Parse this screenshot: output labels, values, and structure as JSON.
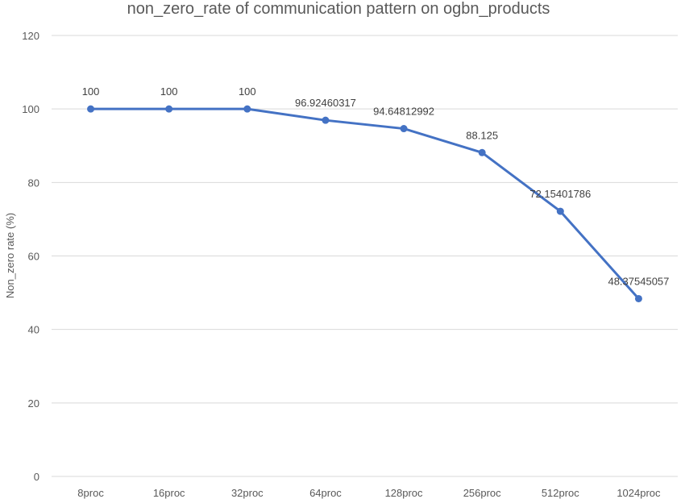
{
  "chart_data": {
    "type": "line",
    "title": "non_zero_rate of communication pattern on ogbn_products",
    "xlabel": "",
    "ylabel": "Non_zero rate (%)",
    "categories": [
      "8proc",
      "16proc",
      "32proc",
      "64proc",
      "128proc",
      "256proc",
      "512proc",
      "1024proc"
    ],
    "series": [
      {
        "values": [
          100,
          100,
          100,
          96.92460317,
          94.64812992,
          88.125,
          72.15401786,
          48.37545057
        ],
        "labels": [
          "100",
          "100",
          "100",
          "96.92460317",
          "94.64812992",
          "88.125",
          "72.15401786",
          "48.37545057"
        ],
        "color": "#4472c4"
      }
    ],
    "ylim": [
      0,
      120
    ],
    "yticks": [
      0,
      20,
      40,
      60,
      80,
      100,
      120
    ],
    "grid": true,
    "legend": "none"
  }
}
